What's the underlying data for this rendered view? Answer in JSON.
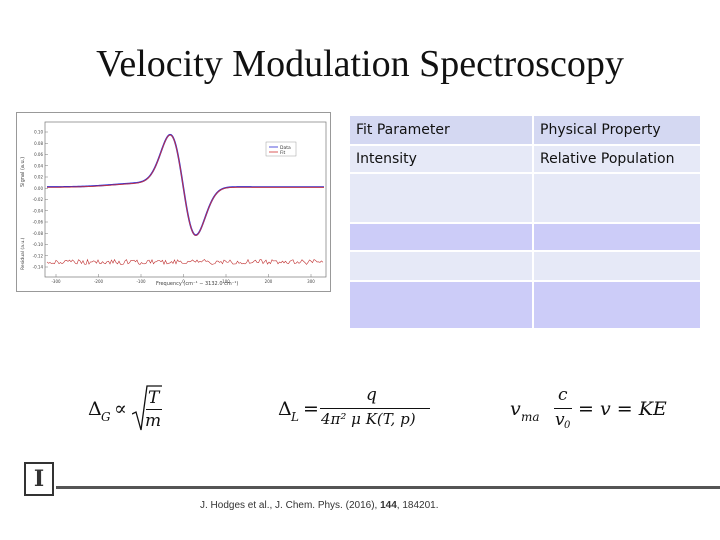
{
  "slide": {
    "title": "Velocity Modulation Spectroscopy"
  },
  "figure": {
    "y_label": "Signal (a.u.)",
    "y_label_residual": "Residual (a.u.)",
    "x_label": "Frequency (cm⁻¹ − 3132.0 cm⁻¹)",
    "legend": [
      "Data",
      "Fit"
    ],
    "y_ticks": [
      "0.10",
      "0.08",
      "0.06",
      "0.04",
      "0.02",
      "0.00",
      "-0.02",
      "-0.04",
      "-0.06",
      "-0.08",
      "-0.10",
      "-0.12",
      "-0.14"
    ],
    "x_ticks": [
      "-300",
      "-200",
      "-100",
      "0",
      "100",
      "200",
      "300"
    ],
    "colors": {
      "data": "#2b2bd6",
      "fit": "#d23232",
      "residual": "#c03030"
    }
  },
  "table": {
    "header": [
      "Fit Parameter",
      "Physical Property"
    ],
    "rows": [
      [
        "Intensity",
        "Relative Population"
      ],
      [
        "",
        ""
      ],
      [
        "",
        ""
      ],
      [
        "",
        ""
      ],
      [
        "",
        ""
      ]
    ],
    "colors": {
      "header": "#d4d8f2",
      "row": "#e6e9f7",
      "blue_row": "#ccccf8",
      "gray_row": "#d8d8e0"
    }
  },
  "equations": {
    "gaussian": {
      "lhs": "Δ",
      "sub": "G",
      "prop": "∝",
      "num": "T",
      "den": "m"
    },
    "lorentzian": {
      "lhs": "Δ",
      "sub": "L",
      "eq": "=",
      "num": "q",
      "den": "4π² μ K(T, p)"
    },
    "velocity": {
      "lhs": "v",
      "sub": "ma",
      "num": "c",
      "den_base": "v",
      "den_sub": "0",
      "rest": "= v = KE"
    }
  },
  "reference": {
    "authors": "J. Hodges et al., J. Chem. Phys. (2016), ",
    "volume": "144",
    "pages": ", 184201."
  },
  "logo": {
    "letter": "I"
  }
}
